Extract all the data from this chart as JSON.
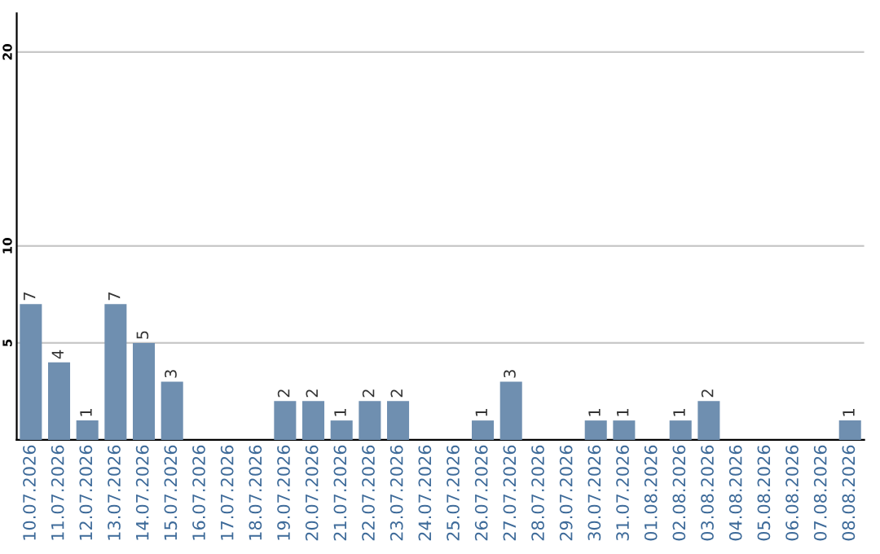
{
  "chart_data": {
    "type": "bar",
    "categories": [
      "10.07.2026",
      "11.07.2026",
      "12.07.2026",
      "13.07.2026",
      "14.07.2026",
      "15.07.2026",
      "16.07.2026",
      "17.07.2026",
      "18.07.2026",
      "19.07.2026",
      "20.07.2026",
      "21.07.2026",
      "22.07.2026",
      "23.07.2026",
      "24.07.2026",
      "25.07.2026",
      "26.07.2026",
      "27.07.2026",
      "28.07.2026",
      "29.07.2026",
      "30.07.2026",
      "31.07.2026",
      "01.08.2026",
      "02.08.2026",
      "03.08.2026",
      "04.08.2026",
      "05.08.2026",
      "06.08.2026",
      "07.08.2026",
      "08.08.2026"
    ],
    "values": [
      7,
      4,
      1,
      7,
      5,
      3,
      0,
      0,
      0,
      2,
      2,
      1,
      2,
      2,
      0,
      0,
      1,
      3,
      0,
      0,
      1,
      1,
      0,
      1,
      2,
      0,
      0,
      0,
      0,
      1
    ],
    "value_labels": [
      "7",
      "4",
      "1",
      "7",
      "5",
      "3",
      null,
      null,
      null,
      "2",
      "2",
      "1",
      "2",
      "2",
      null,
      null,
      "1",
      "3",
      null,
      null,
      "1",
      "1",
      null,
      "1",
      "2",
      null,
      null,
      null,
      null,
      "1"
    ],
    "color": "#6f8fb0",
    "ylim": [
      0,
      22
    ],
    "yticks": [
      5,
      10,
      20
    ],
    "grid": "y"
  }
}
